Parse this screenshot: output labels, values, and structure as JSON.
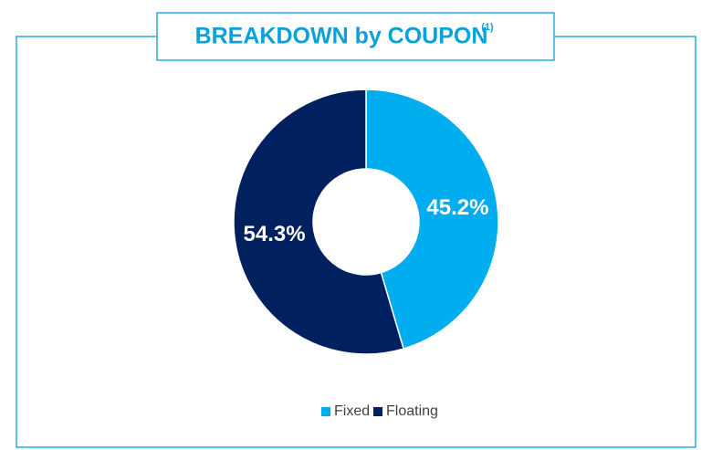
{
  "chart_data": {
    "type": "donut",
    "title": "BREAKDOWN by COUPON",
    "title_note": "(1)",
    "categories": [
      "Fixed",
      "Floating"
    ],
    "values": [
      45.2,
      54.3
    ],
    "value_labels": [
      "45.2%",
      "54.3%"
    ],
    "colors": [
      "#00adef",
      "#002060"
    ],
    "legend": "bottom"
  }
}
